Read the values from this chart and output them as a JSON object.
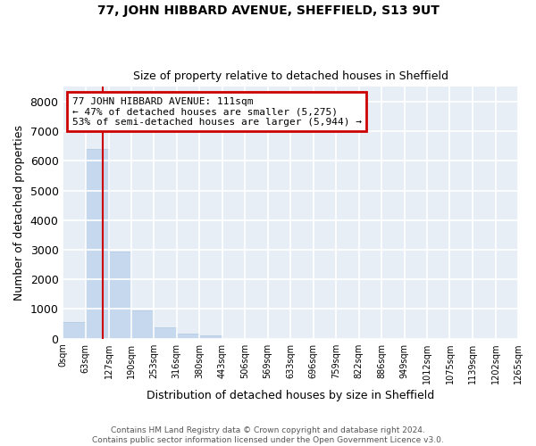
{
  "title1": "77, JOHN HIBBARD AVENUE, SHEFFIELD, S13 9UT",
  "title2": "Size of property relative to detached houses in Sheffield",
  "xlabel": "Distribution of detached houses by size in Sheffield",
  "ylabel": "Number of detached properties",
  "bar_color": "#c5d8ed",
  "bar_edgecolor": "#aec6df",
  "background_color": "#e8eef6",
  "grid_color": "#ffffff",
  "bin_edges": [
    0,
    63,
    127,
    190,
    253,
    316,
    380,
    443,
    506,
    569,
    633,
    696,
    759,
    822,
    886,
    949,
    1012,
    1075,
    1139,
    1202,
    1265
  ],
  "bar_heights": [
    550,
    6400,
    2950,
    950,
    370,
    175,
    100,
    0,
    0,
    0,
    0,
    0,
    0,
    0,
    0,
    0,
    0,
    0,
    0,
    0
  ],
  "property_size": 111,
  "annotation_line1": "77 JOHN HIBBARD AVENUE: 111sqm",
  "annotation_line2": "← 47% of detached houses are smaller (5,275)",
  "annotation_line3": "53% of semi-detached houses are larger (5,944) →",
  "annotation_box_color": "#ffffff",
  "annotation_box_edgecolor": "#cc0000",
  "vline_color": "#cc0000",
  "footer_line1": "Contains HM Land Registry data © Crown copyright and database right 2024.",
  "footer_line2": "Contains public sector information licensed under the Open Government Licence v3.0.",
  "ylim": [
    0,
    8500
  ],
  "yticks": [
    0,
    1000,
    2000,
    3000,
    4000,
    5000,
    6000,
    7000,
    8000
  ],
  "tick_labels": [
    "0sqm",
    "63sqm",
    "127sqm",
    "190sqm",
    "253sqm",
    "316sqm",
    "380sqm",
    "443sqm",
    "506sqm",
    "569sqm",
    "633sqm",
    "696sqm",
    "759sqm",
    "822sqm",
    "886sqm",
    "949sqm",
    "1012sqm",
    "1075sqm",
    "1139sqm",
    "1202sqm",
    "1265sqm"
  ],
  "fig_width": 6.0,
  "fig_height": 5.0,
  "fig_dpi": 100
}
